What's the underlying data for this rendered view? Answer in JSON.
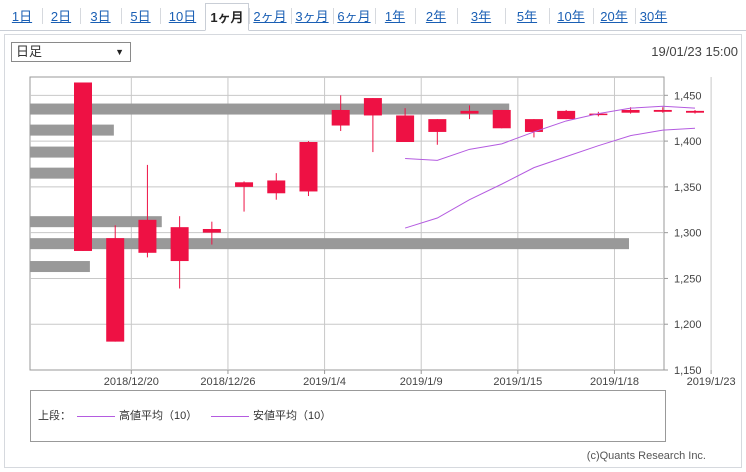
{
  "tabs": [
    {
      "label": "1日",
      "active": false
    },
    {
      "label": "2日",
      "active": false
    },
    {
      "label": "3日",
      "active": false
    },
    {
      "label": "5日",
      "active": false
    },
    {
      "label": "10日",
      "active": false
    },
    {
      "label": "1ヶ月",
      "active": true
    },
    {
      "label": "2ヶ月",
      "active": false
    },
    {
      "label": "3ヶ月",
      "active": false
    },
    {
      "label": "6ヶ月",
      "active": false
    },
    {
      "label": "1年",
      "active": false
    },
    {
      "label": "2年",
      "active": false
    },
    {
      "label": "3年",
      "active": false
    },
    {
      "label": "5年",
      "active": false
    },
    {
      "label": "10年",
      "active": false
    },
    {
      "label": "20年",
      "active": false
    },
    {
      "label": "30年",
      "active": false
    }
  ],
  "controls": {
    "foot_select_value": "日足",
    "timestamp": "19/01/23 15:00"
  },
  "legend": {
    "prefix": "上段：",
    "items": [
      "高値平均（10）",
      "安値平均（10）"
    ]
  },
  "copyright": "(c)Quants Research Inc.",
  "colors": {
    "up": "#ee1144",
    "down": "#003399",
    "ma": "#b45be0",
    "volume_profile": "#999999",
    "grid": "#c8c8c8"
  },
  "chart_data": {
    "type": "candlestick",
    "y_range": [
      1150,
      1470
    ],
    "y_ticks": [
      1150,
      1200,
      1250,
      1300,
      1350,
      1400,
      1450
    ],
    "y_tick_labels": [
      "1,150",
      "1,200",
      "1,250",
      "1,300",
      "1,350",
      "1,400",
      "1,450"
    ],
    "x_tick_labels": [
      "2018/12/20",
      "2018/12/26",
      "2019/1/4",
      "2019/1/9",
      "2019/1/15",
      "2019/1/18",
      "2019/1/23"
    ],
    "x_tick_positions": [
      1,
      4,
      7,
      10,
      13,
      16,
      19
    ],
    "candles": [
      {
        "o": 1280,
        "c": 1464,
        "h": 1464,
        "l": 1280
      },
      {
        "o": 1181,
        "c": 1294,
        "h": 1308,
        "l": 1181
      },
      {
        "o": 1278,
        "c": 1314,
        "h": 1374,
        "l": 1273
      },
      {
        "o": 1269,
        "c": 1306,
        "h": 1318,
        "l": 1239
      },
      {
        "o": 1300,
        "c": 1304,
        "h": 1312,
        "l": 1287
      },
      {
        "o": 1350,
        "c": 1355,
        "h": 1356,
        "l": 1323
      },
      {
        "o": 1343,
        "c": 1357,
        "h": 1365,
        "l": 1336
      },
      {
        "o": 1345,
        "c": 1399,
        "h": 1400,
        "l": 1340
      },
      {
        "o": 1417,
        "c": 1434,
        "h": 1450,
        "l": 1411
      },
      {
        "o": 1428,
        "c": 1447,
        "h": 1447,
        "l": 1388
      },
      {
        "o": 1399,
        "c": 1428,
        "h": 1436,
        "l": 1399
      },
      {
        "o": 1410,
        "c": 1424,
        "h": 1424,
        "l": 1396
      },
      {
        "o": 1430,
        "c": 1433,
        "h": 1439,
        "l": 1424
      },
      {
        "o": 1414,
        "c": 1434,
        "h": 1434,
        "l": 1414
      },
      {
        "o": 1410,
        "c": 1424,
        "h": 1424,
        "l": 1404
      },
      {
        "o": 1424,
        "c": 1433,
        "h": 1434,
        "l": 1424
      },
      {
        "o": 1430,
        "c": 1430,
        "h": 1432,
        "l": 1427
      },
      {
        "o": 1431,
        "c": 1434,
        "h": 1437,
        "l": 1430
      },
      {
        "o": 1432,
        "c": 1434,
        "h": 1437,
        "l": 1431
      },
      {
        "o": 1431,
        "c": 1433,
        "h": 1434,
        "l": 1430
      }
    ],
    "ma_high": {
      "start_index": 10,
      "values": [
        1381,
        1379,
        1391,
        1397,
        1410,
        1422,
        1430,
        1436,
        1438,
        1436
      ]
    },
    "ma_low": {
      "start_index": 10,
      "values": [
        1305,
        1316,
        1336,
        1353,
        1371,
        1383,
        1395,
        1406,
        1412,
        1414
      ]
    },
    "volume_profile": [
      {
        "price": 1435,
        "length": 0.8
      },
      {
        "price": 1412,
        "length": 0.14
      },
      {
        "price": 1388,
        "length": 0.1
      },
      {
        "price": 1365,
        "length": 0.1
      },
      {
        "price": 1312,
        "length": 0.22
      },
      {
        "price": 1288,
        "length": 1.0
      },
      {
        "price": 1263,
        "length": 0.1
      }
    ]
  }
}
